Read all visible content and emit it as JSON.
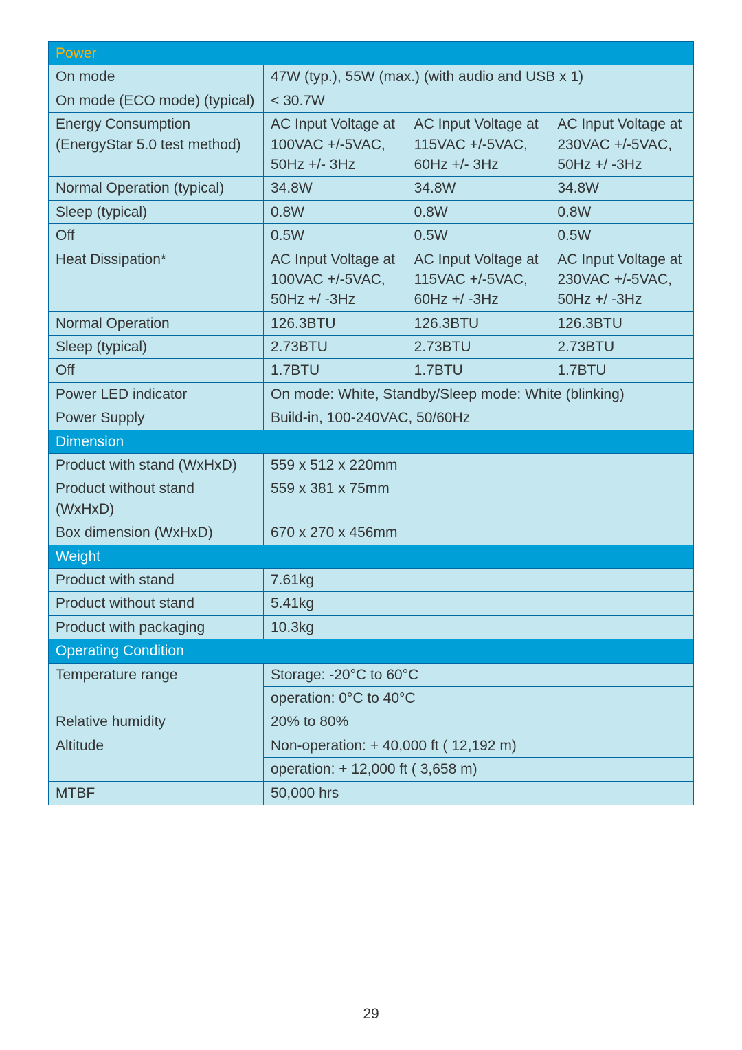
{
  "colors": {
    "header_bg": "#009fd8",
    "header_text_white": "#ffffff",
    "header_text_accent": "#ffb000",
    "cell_bg": "#c5e8f0",
    "border": "#0066a1",
    "page_bg": "#ffffff"
  },
  "sections": {
    "power": {
      "title": "Power",
      "rows": {
        "on_mode": {
          "label": "On mode",
          "value": "47W (typ.), 55W (max.) (with audio and USB x 1)"
        },
        "on_mode_eco": {
          "label": "On mode (ECO mode) (typical)",
          "value": "< 30.7W"
        },
        "energy_consumption": {
          "label": "Energy Consumption (EnergyStar 5.0 test method)",
          "col1": "AC Input Voltage at 100VAC +/-5VAC, 50Hz +/- 3Hz",
          "col2": "AC Input Voltage at 115VAC +/-5VAC, 60Hz +/- 3Hz",
          "col3": "AC Input Voltage at 230VAC +/-5VAC, 50Hz +/ -3Hz"
        },
        "normal_op_typ": {
          "label": "Normal Operation (typical)",
          "col1": "34.8W",
          "col2": "34.8W",
          "col3": "34.8W"
        },
        "sleep_typ": {
          "label": "Sleep (typical)",
          "col1": "0.8W",
          "col2": "0.8W",
          "col3": "0.8W"
        },
        "off": {
          "label": "Off",
          "col1": "0.5W",
          "col2": "0.5W",
          "col3": "0.5W"
        },
        "heat_dissipation": {
          "label": "Heat Dissipation*",
          "col1": "AC Input Voltage at 100VAC +/-5VAC, 50Hz +/ -3Hz",
          "col2": "AC Input Voltage at 115VAC +/-5VAC, 60Hz +/ -3Hz",
          "col3": "AC Input Voltage at 230VAC +/-5VAC, 50Hz +/ -3Hz"
        },
        "normal_op": {
          "label": "Normal Operation",
          "col1": "126.3BTU",
          "col2": "126.3BTU",
          "col3": "126.3BTU"
        },
        "sleep_typ2": {
          "label": "Sleep (typical)",
          "col1": "2.73BTU",
          "col2": "2.73BTU",
          "col3": "2.73BTU"
        },
        "off2": {
          "label": "Off",
          "col1": "1.7BTU",
          "col2": "1.7BTU",
          "col3": "1.7BTU"
        },
        "led": {
          "label": "Power LED indicator",
          "value": "On mode: White, Standby/Sleep mode: White (blinking)"
        },
        "supply": {
          "label": "Power Supply",
          "value": "Build-in, 100-240VAC, 50/60Hz"
        }
      }
    },
    "dimension": {
      "title": "Dimension",
      "rows": {
        "with_stand": {
          "label": "Product with stand (WxHxD)",
          "value": "559 x 512 x 220mm"
        },
        "without_stand": {
          "label": "Product without stand (WxHxD)",
          "value": "559 x 381 x 75mm"
        },
        "box": {
          "label": "Box dimension (WxHxD)",
          "value": "670 x 270 x 456mm"
        }
      }
    },
    "weight": {
      "title": "Weight",
      "rows": {
        "with_stand": {
          "label": "Product with stand",
          "value": "7.61kg"
        },
        "without_stand": {
          "label": "Product without stand",
          "value": "5.41kg"
        },
        "packaging": {
          "label": "Product with packaging",
          "value": "10.3kg"
        }
      }
    },
    "operating": {
      "title": "Operating Condition",
      "rows": {
        "temp": {
          "label": "Temperature range",
          "value1": "Storage: -20°C to 60°C",
          "value2": "operation: 0°C to 40°C"
        },
        "humidity": {
          "label": "Relative humidity",
          "value": "20% to 80%"
        },
        "altitude": {
          "label": "Altitude",
          "value1": "Non-operation: + 40,000 ft ( 12,192 m)",
          "value2": "operation: + 12,000 ft ( 3,658 m)"
        },
        "mtbf": {
          "label": "MTBF",
          "value": "50,000 hrs"
        }
      }
    }
  },
  "page_number": "29"
}
